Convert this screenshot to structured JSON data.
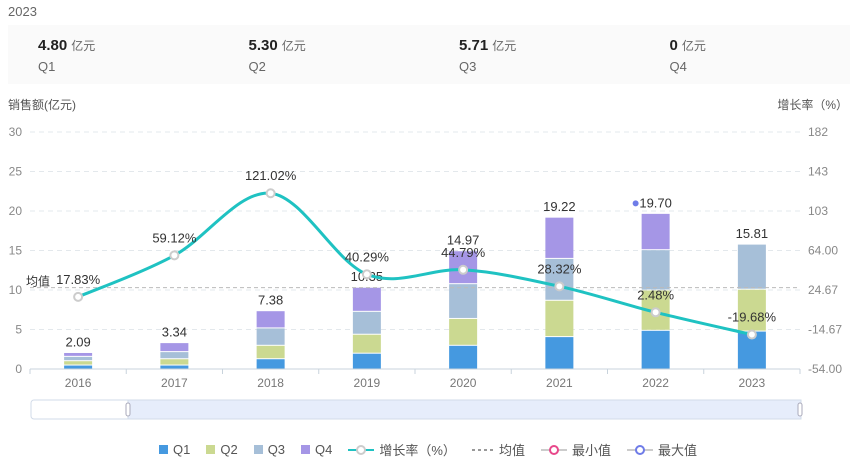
{
  "header": {
    "year": "2023",
    "unit": "亿元",
    "stats": [
      {
        "value": "4.80",
        "label": "Q1"
      },
      {
        "value": "5.30",
        "label": "Q2"
      },
      {
        "value": "5.71",
        "label": "Q3"
      },
      {
        "value": "0",
        "label": "Q4"
      }
    ]
  },
  "chart_data": {
    "type": "bar",
    "categories": [
      "2016",
      "2017",
      "2018",
      "2019",
      "2020",
      "2021",
      "2022",
      "2023"
    ],
    "ylabel": "销售额(亿元)",
    "y2label": "增长率（%）",
    "ylim": [
      0,
      30
    ],
    "yticks": [
      "0",
      "5",
      "10",
      "15",
      "20",
      "25",
      "30"
    ],
    "y2lim": [
      -54,
      182
    ],
    "y2ticks": [
      "-54.00",
      "-14.67",
      "24.67",
      "64.00",
      "103",
      "143",
      "182"
    ],
    "colors": {
      "Q1": "#4599e0",
      "Q2": "#cbd991",
      "Q3": "#a6bfd8",
      "Q4": "#a596e6",
      "growth": "#1fc2c2",
      "max": "#6f7ce8",
      "min": "#e8488a"
    },
    "series": [
      {
        "name": "Q1",
        "values": [
          0.5,
          0.5,
          1.3,
          2.0,
          3.0,
          4.1,
          4.9,
          4.8
        ]
      },
      {
        "name": "Q2",
        "values": [
          0.55,
          0.8,
          1.7,
          2.4,
          3.4,
          4.6,
          5.1,
          5.3
        ]
      },
      {
        "name": "Q3",
        "values": [
          0.55,
          0.9,
          2.2,
          2.9,
          4.4,
          5.3,
          5.1,
          5.71
        ]
      },
      {
        "name": "Q4",
        "values": [
          0.49,
          1.14,
          2.18,
          3.05,
          4.17,
          5.22,
          4.6,
          0
        ]
      }
    ],
    "totals": [
      "2.09",
      "3.34",
      "7.38",
      "10.35",
      "14.97",
      "19.22",
      "19.70",
      "15.81"
    ],
    "growth": {
      "name": "增长率（%）",
      "values": [
        17.83,
        59.12,
        121.02,
        40.29,
        44.79,
        28.32,
        2.48,
        -19.68
      ],
      "labels": [
        "17.83%",
        "59.12%",
        "121.02%",
        "40.29%",
        "44.79%",
        "28.32%",
        "2.48%",
        "-19.68%"
      ]
    },
    "average": {
      "label": "均值",
      "value": 10.3
    },
    "max_index": 6
  },
  "legend": [
    "Q1",
    "Q2",
    "Q3",
    "Q4",
    "增长率（%）",
    "均值",
    "最小值",
    "最大值"
  ]
}
